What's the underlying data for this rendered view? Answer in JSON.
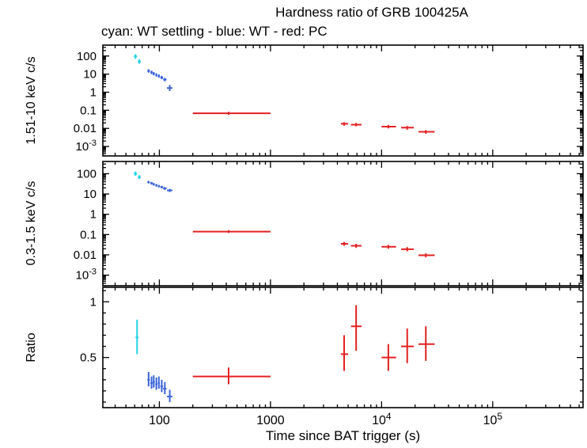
{
  "chart_data": {
    "type": "scatter",
    "title": "Hardness ratio of GRB 100425A",
    "subtitle": "cyan: WT settling - blue: WT - red: PC",
    "xlabel": "Time since BAT trigger (s)",
    "xscale": "log",
    "xlim": [
      31,
      650000
    ],
    "xticks": [
      100,
      1000,
      10000,
      100000
    ],
    "xtick_labels": [
      "100",
      "1000",
      "10^4",
      "10^5"
    ],
    "colors": {
      "wt_settling": "#22d3e6",
      "wt": "#3a64d8",
      "pc": "#e32020",
      "axes": "#000000"
    },
    "panels": [
      {
        "ylabel": "1.51-10 keV c/s",
        "yscale": "log",
        "ylim": [
          0.0003,
          400
        ],
        "yticks": [
          100,
          10,
          1,
          0.1,
          0.01,
          0.001
        ],
        "ytick_labels": [
          "100",
          "10",
          "1",
          "0.1",
          "0.01",
          "10^-3"
        ],
        "series": [
          {
            "name": "WT settling",
            "color": "#22d3e6",
            "points": [
              {
                "t": 61,
                "t0": 59,
                "t1": 63,
                "y": 95,
                "y0": 70,
                "y1": 125
              },
              {
                "t": 66,
                "t0": 64,
                "t1": 68,
                "y": 50,
                "y0": 38,
                "y1": 66
              }
            ]
          },
          {
            "name": "WT",
            "color": "#3a64d8",
            "points": [
              {
                "t": 80,
                "t0": 78,
                "t1": 82,
                "y": 15,
                "y0": 12,
                "y1": 18.5
              },
              {
                "t": 85,
                "t0": 83,
                "t1": 87,
                "y": 12.5,
                "y0": 10,
                "y1": 15.5
              },
              {
                "t": 89,
                "t0": 87,
                "t1": 91,
                "y": 10.5,
                "y0": 8.5,
                "y1": 13
              },
              {
                "t": 94,
                "t0": 92,
                "t1": 96,
                "y": 9,
                "y0": 7.3,
                "y1": 11
              },
              {
                "t": 99,
                "t0": 97,
                "t1": 101,
                "y": 7.8,
                "y0": 6.3,
                "y1": 9.6
              },
              {
                "t": 105,
                "t0": 102,
                "t1": 108,
                "y": 6.5,
                "y0": 5.2,
                "y1": 8
              },
              {
                "t": 112,
                "t0": 108,
                "t1": 116,
                "y": 5,
                "y0": 4,
                "y1": 6.2
              },
              {
                "t": 124,
                "t0": 117,
                "t1": 131,
                "y": 1.7,
                "y0": 1.15,
                "y1": 2.5
              }
            ]
          },
          {
            "name": "PC",
            "color": "#e32020",
            "points": [
              {
                "t": 420,
                "t0": 200,
                "t1": 1000,
                "y": 0.068,
                "y0": 0.056,
                "y1": 0.082
              },
              {
                "t": 4600,
                "t0": 4300,
                "t1": 5000,
                "y": 0.018,
                "y0": 0.014,
                "y1": 0.022
              },
              {
                "t": 5900,
                "t0": 5300,
                "t1": 6600,
                "y": 0.016,
                "y0": 0.013,
                "y1": 0.02
              },
              {
                "t": 11500,
                "t0": 10000,
                "t1": 13500,
                "y": 0.0125,
                "y0": 0.01,
                "y1": 0.0155
              },
              {
                "t": 17000,
                "t0": 15000,
                "t1": 19500,
                "y": 0.011,
                "y0": 0.0085,
                "y1": 0.0135
              },
              {
                "t": 25000,
                "t0": 21500,
                "t1": 30000,
                "y": 0.0065,
                "y0": 0.005,
                "y1": 0.008
              }
            ]
          }
        ]
      },
      {
        "ylabel": "0.3-1.5 keV c/s",
        "yscale": "log",
        "ylim": [
          0.0003,
          400
        ],
        "yticks": [
          100,
          10,
          1,
          0.1,
          0.01,
          0.001
        ],
        "ytick_labels": [
          "100",
          "10",
          "1",
          "0.1",
          "0.01",
          "10^-3"
        ],
        "series": [
          {
            "name": "WT settling",
            "color": "#22d3e6",
            "points": [
              {
                "t": 61,
                "t0": 59,
                "t1": 63,
                "y": 100,
                "y0": 78,
                "y1": 128
              },
              {
                "t": 66,
                "t0": 64,
                "t1": 68,
                "y": 68,
                "y0": 55,
                "y1": 84
              }
            ]
          },
          {
            "name": "WT",
            "color": "#3a64d8",
            "points": [
              {
                "t": 80,
                "t0": 78,
                "t1": 82,
                "y": 38,
                "y0": 33,
                "y1": 44
              },
              {
                "t": 85,
                "t0": 83,
                "t1": 87,
                "y": 34,
                "y0": 29,
                "y1": 39
              },
              {
                "t": 89,
                "t0": 87,
                "t1": 91,
                "y": 30,
                "y0": 26,
                "y1": 35
              },
              {
                "t": 94,
                "t0": 92,
                "t1": 96,
                "y": 27,
                "y0": 23,
                "y1": 31
              },
              {
                "t": 99,
                "t0": 97,
                "t1": 101,
                "y": 24,
                "y0": 21,
                "y1": 28
              },
              {
                "t": 105,
                "t0": 102,
                "t1": 108,
                "y": 22,
                "y0": 19,
                "y1": 25
              },
              {
                "t": 112,
                "t0": 108,
                "t1": 116,
                "y": 19,
                "y0": 16,
                "y1": 22
              },
              {
                "t": 124,
                "t0": 117,
                "t1": 131,
                "y": 15,
                "y0": 12.5,
                "y1": 18
              }
            ]
          },
          {
            "name": "PC",
            "color": "#e32020",
            "points": [
              {
                "t": 420,
                "t0": 200,
                "t1": 1000,
                "y": 0.14,
                "y0": 0.12,
                "y1": 0.165
              },
              {
                "t": 4600,
                "t0": 4300,
                "t1": 5000,
                "y": 0.035,
                "y0": 0.028,
                "y1": 0.043
              },
              {
                "t": 5900,
                "t0": 5300,
                "t1": 6600,
                "y": 0.028,
                "y0": 0.022,
                "y1": 0.035
              },
              {
                "t": 11500,
                "t0": 10000,
                "t1": 13500,
                "y": 0.025,
                "y0": 0.02,
                "y1": 0.031
              },
              {
                "t": 17000,
                "t0": 15000,
                "t1": 19500,
                "y": 0.019,
                "y0": 0.015,
                "y1": 0.024
              },
              {
                "t": 25000,
                "t0": 21500,
                "t1": 30000,
                "y": 0.0095,
                "y0": 0.0075,
                "y1": 0.0118
              }
            ]
          }
        ]
      },
      {
        "ylabel": "Ratio",
        "yscale": "linear",
        "ylim": [
          0.05,
          1.13
        ],
        "yticks": [
          1,
          0.5
        ],
        "ytick_labels": [
          "1",
          "0.5"
        ],
        "yminor": [
          0.1,
          0.2,
          0.3,
          0.4,
          0.6,
          0.7,
          0.8,
          0.9,
          1.1
        ],
        "series": [
          {
            "name": "WT settling",
            "color": "#22d3e6",
            "points": [
              {
                "t": 63,
                "t0": 61,
                "t1": 65,
                "y": 0.68,
                "y0": 0.53,
                "y1": 0.84
              }
            ]
          },
          {
            "name": "WT",
            "color": "#3a64d8",
            "points": [
              {
                "t": 80,
                "t0": 78,
                "t1": 82,
                "y": 0.3,
                "y0": 0.24,
                "y1": 0.37
              },
              {
                "t": 85,
                "t0": 83,
                "t1": 87,
                "y": 0.27,
                "y0": 0.22,
                "y1": 0.33
              },
              {
                "t": 89,
                "t0": 87,
                "t1": 91,
                "y": 0.28,
                "y0": 0.23,
                "y1": 0.34
              },
              {
                "t": 94,
                "t0": 92,
                "t1": 96,
                "y": 0.26,
                "y0": 0.21,
                "y1": 0.32
              },
              {
                "t": 99,
                "t0": 97,
                "t1": 101,
                "y": 0.27,
                "y0": 0.22,
                "y1": 0.33
              },
              {
                "t": 105,
                "t0": 102,
                "t1": 108,
                "y": 0.24,
                "y0": 0.19,
                "y1": 0.3
              },
              {
                "t": 112,
                "t0": 108,
                "t1": 116,
                "y": 0.22,
                "y0": 0.17,
                "y1": 0.28
              },
              {
                "t": 124,
                "t0": 117,
                "t1": 131,
                "y": 0.15,
                "y0": 0.1,
                "y1": 0.21
              }
            ]
          },
          {
            "name": "PC",
            "color": "#e32020",
            "points": [
              {
                "t": 420,
                "t0": 200,
                "t1": 1000,
                "y": 0.33,
                "y0": 0.26,
                "y1": 0.41
              },
              {
                "t": 4600,
                "t0": 4300,
                "t1": 5000,
                "y": 0.53,
                "y0": 0.38,
                "y1": 0.7
              },
              {
                "t": 5900,
                "t0": 5300,
                "t1": 6600,
                "y": 0.78,
                "y0": 0.56,
                "y1": 0.97
              },
              {
                "t": 11500,
                "t0": 10000,
                "t1": 13500,
                "y": 0.5,
                "y0": 0.38,
                "y1": 0.62
              },
              {
                "t": 17000,
                "t0": 15000,
                "t1": 19500,
                "y": 0.6,
                "y0": 0.45,
                "y1": 0.76
              },
              {
                "t": 25000,
                "t0": 21500,
                "t1": 30000,
                "y": 0.62,
                "y0": 0.47,
                "y1": 0.78
              }
            ]
          }
        ]
      }
    ]
  }
}
